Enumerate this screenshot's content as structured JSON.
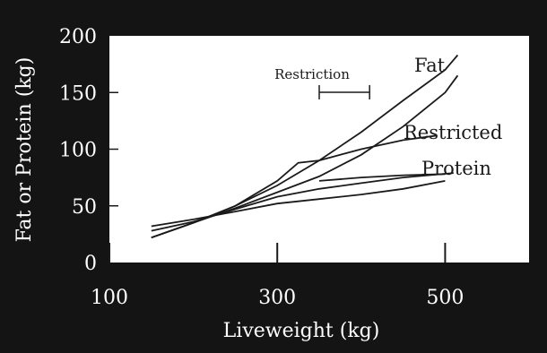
{
  "chart_data": {
    "type": "line",
    "xlabel": "Liveweight (kg)",
    "ylabel": "Fat or Protein (kg)",
    "xlim": [
      100,
      600
    ],
    "ylim": [
      0,
      200
    ],
    "x_ticks": [
      100,
      300,
      500
    ],
    "x_tick_labels": [
      "100",
      "300",
      "500"
    ],
    "y_ticks": [
      0,
      50,
      100,
      150,
      200
    ],
    "y_tick_labels": [
      "0",
      "50",
      "100",
      "150",
      "200"
    ],
    "grid": false,
    "series": [
      {
        "name": "Fat",
        "x": [
          150,
          200,
          250,
          300,
          350,
          400,
          450,
          500,
          515
        ],
        "y": [
          22,
          35,
          50,
          68,
          90,
          115,
          143,
          170,
          183
        ]
      },
      {
        "name": "",
        "x": [
          150,
          200,
          250,
          300,
          350,
          400,
          450,
          500,
          515
        ],
        "y": [
          22,
          35,
          48,
          62,
          76,
          95,
          120,
          150,
          165
        ]
      },
      {
        "name": "Restricted",
        "x": [
          150,
          200,
          250,
          300,
          325,
          350,
          400,
          450,
          490
        ],
        "y": [
          22,
          35,
          50,
          72,
          88,
          90,
          100,
          108,
          112
        ]
      },
      {
        "name": "Protein",
        "x": [
          150,
          200,
          250,
          300,
          350,
          400,
          450,
          500
        ],
        "y": [
          32,
          38,
          45,
          52,
          56,
          60,
          65,
          72
        ]
      },
      {
        "name": "",
        "x": [
          150,
          200,
          250,
          300,
          350,
          400,
          450,
          510
        ],
        "y": [
          28,
          36,
          47,
          58,
          65,
          70,
          75,
          79
        ]
      },
      {
        "name": "",
        "x": [
          350,
          400,
          450,
          500
        ],
        "y": [
          72,
          75,
          77,
          78
        ]
      }
    ],
    "annotations": [
      {
        "text": "Restriction",
        "x_range": [
          350,
          410
        ]
      }
    ],
    "colors": {
      "background": "#141414",
      "plot_area": "#ffffff",
      "lines": "#1a1a1a",
      "text": "#ffffff"
    }
  }
}
